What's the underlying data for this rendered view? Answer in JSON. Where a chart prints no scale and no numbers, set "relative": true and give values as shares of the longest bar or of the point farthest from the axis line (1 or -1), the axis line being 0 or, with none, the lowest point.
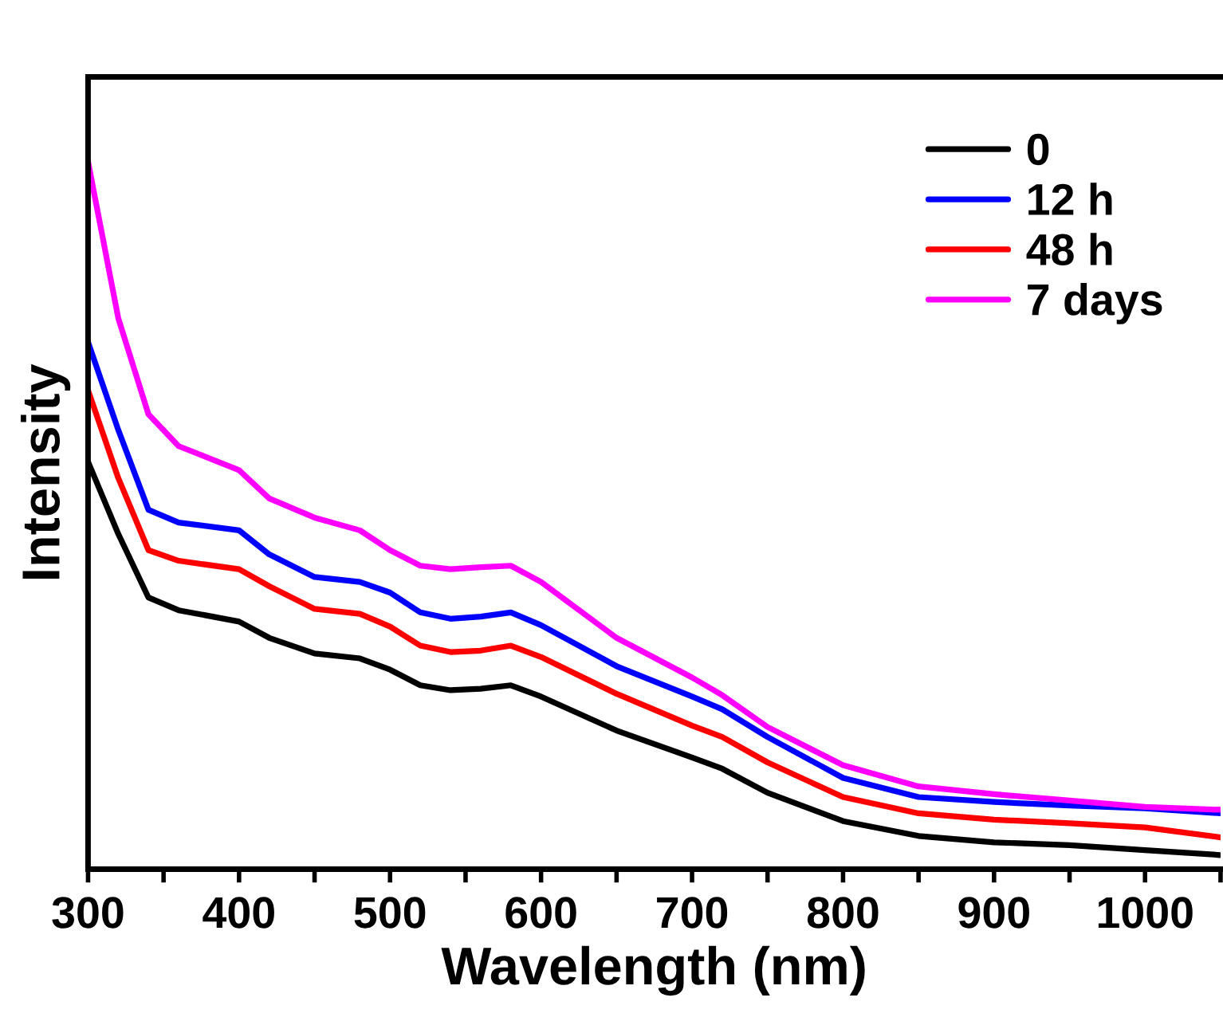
{
  "chart_data": {
    "type": "line",
    "xlabel": "Wavelength (nm)",
    "ylabel": "Intensity",
    "relative": true,
    "x": [
      300,
      320,
      340,
      360,
      400,
      420,
      450,
      480,
      500,
      520,
      540,
      560,
      580,
      600,
      650,
      700,
      720,
      750,
      800,
      850,
      900,
      950,
      1000,
      1050
    ],
    "xlim": [
      300,
      1050
    ],
    "xticks": [
      300,
      {
        "value": 350,
        "label": null
      },
      400,
      {
        "value": 450,
        "label": null
      },
      500,
      {
        "value": 550,
        "label": null
      },
      600,
      {
        "value": 650,
        "label": null
      },
      700,
      {
        "value": 750,
        "label": null
      },
      800,
      {
        "value": 850,
        "label": null
      },
      900,
      {
        "value": 950,
        "label": null
      },
      1000,
      {
        "value": 1050,
        "label": null
      }
    ],
    "legend": "top right",
    "line_style": "solid",
    "marker": "none",
    "grid": false,
    "series": [
      {
        "name": "0",
        "color": "#000000",
        "values": [
          0.576,
          0.474,
          0.384,
          0.366,
          0.35,
          0.327,
          0.305,
          0.298,
          0.282,
          0.26,
          0.253,
          0.255,
          0.26,
          0.244,
          0.196,
          0.158,
          0.142,
          0.108,
          0.068,
          0.047,
          0.038,
          0.034,
          0.027,
          0.02
        ]
      },
      {
        "name": "12 h",
        "color": "#0000ff",
        "values": [
          0.745,
          0.621,
          0.508,
          0.49,
          0.479,
          0.445,
          0.413,
          0.406,
          0.391,
          0.363,
          0.354,
          0.357,
          0.363,
          0.345,
          0.287,
          0.244,
          0.226,
          0.187,
          0.129,
          0.102,
          0.095,
          0.09,
          0.086,
          0.079
        ]
      },
      {
        "name": "48 h",
        "color": "#ff0000",
        "values": [
          0.677,
          0.553,
          0.451,
          0.436,
          0.424,
          0.4,
          0.368,
          0.361,
          0.343,
          0.316,
          0.307,
          0.309,
          0.316,
          0.3,
          0.248,
          0.203,
          0.187,
          0.151,
          0.102,
          0.079,
          0.07,
          0.065,
          0.059,
          0.045
        ]
      },
      {
        "name": "7 days",
        "color": "#ff00ff",
        "values": [
          1.0,
          0.779,
          0.643,
          0.598,
          0.564,
          0.524,
          0.497,
          0.479,
          0.451,
          0.429,
          0.424,
          0.427,
          0.429,
          0.406,
          0.327,
          0.271,
          0.246,
          0.201,
          0.147,
          0.117,
          0.106,
          0.097,
          0.088,
          0.084
        ]
      }
    ]
  }
}
